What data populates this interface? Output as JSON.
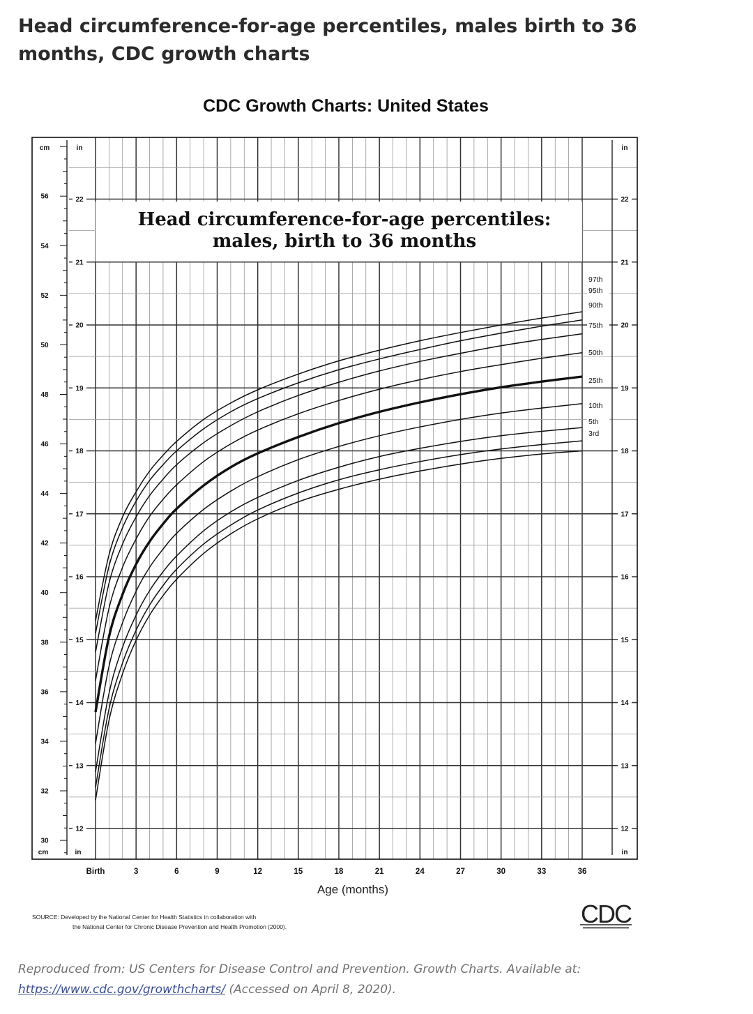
{
  "page": {
    "title": "Head circumference-for-age percentiles, males birth to 36 months, CDC growth charts"
  },
  "figure": {
    "header": "CDC Growth Charts: United States",
    "inset_title_line1": "Head circumference-for-age percentiles:",
    "inset_title_line2": "males, birth to 36 months",
    "cm_label": "cm",
    "in_label": "in",
    "xlabel": "Age (months)",
    "source_line1": "SOURCE: Developed by the National Center for Health Statistics in collaboration with",
    "source_line2": "the National Center for Chronic Disease Prevention and Health Promotion (2000).",
    "logo_text": "CDC"
  },
  "chart_data": {
    "type": "line",
    "title": "Head circumference-for-age percentiles: males, birth to 36 months",
    "xlabel": "Age (months)",
    "ylabel": "",
    "xlim": [
      0,
      36
    ],
    "ylim_cm": [
      29.5,
      58.5
    ],
    "ylim_in": [
      11.6,
      23.0
    ],
    "x_ticks": [
      {
        "value": 0,
        "label": "Birth"
      },
      {
        "value": 3,
        "label": "3"
      },
      {
        "value": 6,
        "label": "6"
      },
      {
        "value": 9,
        "label": "9"
      },
      {
        "value": 12,
        "label": "12"
      },
      {
        "value": 15,
        "label": "15"
      },
      {
        "value": 18,
        "label": "18"
      },
      {
        "value": 21,
        "label": "21"
      },
      {
        "value": 24,
        "label": "24"
      },
      {
        "value": 27,
        "label": "27"
      },
      {
        "value": 30,
        "label": "30"
      },
      {
        "value": 33,
        "label": "33"
      },
      {
        "value": 36,
        "label": "36"
      }
    ],
    "cm_ticks": [
      30,
      32,
      34,
      36,
      38,
      40,
      42,
      44,
      46,
      48,
      50,
      52,
      54,
      56
    ],
    "in_ticks": [
      12,
      13,
      14,
      15,
      16,
      17,
      18,
      19,
      20,
      21,
      22
    ],
    "grid": true,
    "x": [
      0,
      1,
      2,
      3,
      4,
      5,
      6,
      8,
      10,
      12,
      15,
      18,
      21,
      24,
      27,
      30,
      33,
      36
    ],
    "series": [
      {
        "name": "97th",
        "bold": false,
        "y_in": [
          15.3,
          16.35,
          16.95,
          17.35,
          17.68,
          17.93,
          18.15,
          18.5,
          18.76,
          18.97,
          19.22,
          19.43,
          19.6,
          19.75,
          19.88,
          20.0,
          20.11,
          20.21
        ]
      },
      {
        "name": "95th",
        "bold": false,
        "y_in": [
          15.1,
          16.17,
          16.78,
          17.2,
          17.53,
          17.78,
          18.0,
          18.35,
          18.62,
          18.83,
          19.08,
          19.29,
          19.46,
          19.61,
          19.75,
          19.87,
          19.98,
          20.08
        ]
      },
      {
        "name": "90th",
        "bold": false,
        "y_in": [
          14.8,
          15.9,
          16.52,
          16.95,
          17.29,
          17.55,
          17.78,
          18.13,
          18.4,
          18.62,
          18.88,
          19.09,
          19.27,
          19.42,
          19.55,
          19.67,
          19.77,
          19.86
        ]
      },
      {
        "name": "75th",
        "bold": false,
        "y_in": [
          14.35,
          15.5,
          16.15,
          16.6,
          16.96,
          17.23,
          17.46,
          17.83,
          18.11,
          18.33,
          18.59,
          18.8,
          18.98,
          19.13,
          19.26,
          19.37,
          19.47,
          19.56
        ]
      },
      {
        "name": "50th",
        "bold": true,
        "y_in": [
          13.85,
          15.05,
          15.72,
          16.2,
          16.56,
          16.84,
          17.08,
          17.45,
          17.74,
          17.96,
          18.22,
          18.44,
          18.62,
          18.77,
          18.9,
          19.01,
          19.1,
          19.18
        ]
      },
      {
        "name": "25th",
        "bold": false,
        "y_in": [
          13.35,
          14.58,
          15.27,
          15.77,
          16.15,
          16.44,
          16.69,
          17.07,
          17.36,
          17.59,
          17.86,
          18.07,
          18.24,
          18.38,
          18.5,
          18.6,
          18.68,
          18.75
        ]
      },
      {
        "name": "10th",
        "bold": false,
        "y_in": [
          12.9,
          14.15,
          14.88,
          15.39,
          15.78,
          16.08,
          16.33,
          16.73,
          17.03,
          17.26,
          17.53,
          17.74,
          17.91,
          18.04,
          18.15,
          18.24,
          18.31,
          18.37
        ]
      },
      {
        "name": "5th",
        "bold": false,
        "y_in": [
          12.65,
          13.9,
          14.63,
          15.15,
          15.55,
          15.86,
          16.12,
          16.52,
          16.82,
          17.06,
          17.33,
          17.54,
          17.7,
          17.83,
          17.94,
          18.03,
          18.1,
          18.16
        ]
      },
      {
        "name": "3rd",
        "bold": false,
        "y_in": [
          12.45,
          13.72,
          14.46,
          14.99,
          15.39,
          15.7,
          15.96,
          16.37,
          16.68,
          16.92,
          17.19,
          17.39,
          17.55,
          17.68,
          17.79,
          17.88,
          17.95,
          18.0
        ]
      }
    ]
  },
  "footer": {
    "text": "Reproduced from: US Centers for Disease Control and Prevention. Growth Charts. Available at:",
    "link": "https://www.cdc.gov/growthcharts/",
    "accessed": "(Accessed on April 8, 2020)."
  }
}
